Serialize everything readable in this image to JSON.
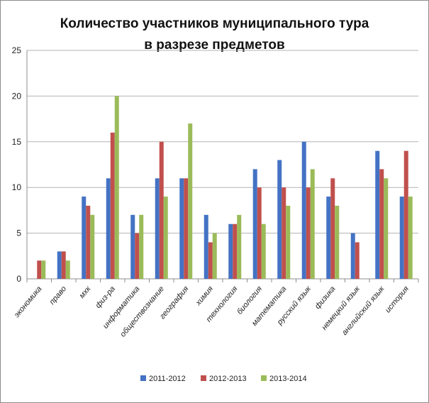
{
  "chart_data": {
    "type": "bar",
    "title": "Количество участников  муниципального тура в разрезе предметов",
    "title_lines": [
      "Количество участников  муниципального тура",
      "в разрезе предметов"
    ],
    "xlabel": "",
    "ylabel": "",
    "ylim": [
      0,
      25
    ],
    "yticks": [
      0,
      5,
      10,
      15,
      20,
      25
    ],
    "grid": true,
    "legend_position": "bottom",
    "categories": [
      "экономика",
      "право",
      "мхк",
      "физ-ра",
      "информатика",
      "обществознание",
      "география",
      "химия",
      "технология",
      "биология",
      "математика",
      "русский язык",
      "физика",
      "немецкий язык",
      "английский язык",
      "история"
    ],
    "series": [
      {
        "name": "2011-2012",
        "color": "#4472C4",
        "values": [
          0,
          3,
          9,
          11,
          7,
          11,
          11,
          7,
          6,
          12,
          13,
          15,
          9,
          5,
          14,
          9
        ]
      },
      {
        "name": "2012-2013",
        "color": "#C0504D",
        "values": [
          2,
          3,
          8,
          16,
          5,
          15,
          11,
          4,
          6,
          10,
          10,
          10,
          11,
          4,
          12,
          14
        ]
      },
      {
        "name": "2013-2014",
        "color": "#9BBB59",
        "values": [
          2,
          2,
          7,
          20,
          7,
          9,
          17,
          5,
          7,
          6,
          8,
          12,
          8,
          0,
          11,
          9
        ]
      }
    ]
  }
}
